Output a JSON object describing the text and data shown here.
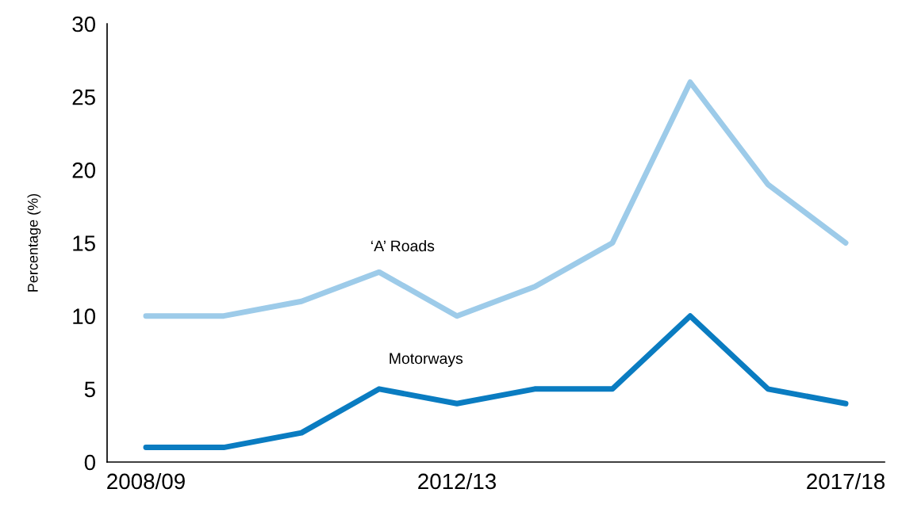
{
  "chart_data": {
    "type": "line",
    "ylabel": "Percentage (%)",
    "categories": [
      "2008/09",
      null,
      null,
      null,
      "2012/13",
      null,
      null,
      null,
      null,
      "2017/18"
    ],
    "series": [
      {
        "name": "‘A’ Roads",
        "color": "#9dcbe9",
        "values": [
          10,
          10,
          11,
          13,
          10,
          12,
          15,
          26,
          19,
          15
        ]
      },
      {
        "name": "Motorways",
        "color": "#0a7cc1",
        "values": [
          1,
          1,
          2,
          5,
          4,
          5,
          5,
          10,
          5,
          4
        ]
      }
    ],
    "ylim": [
      0,
      30
    ],
    "yticks": [
      0,
      5,
      10,
      15,
      20,
      25,
      30
    ],
    "grid": false,
    "legend": false,
    "marker": "none",
    "line_style": "solid"
  }
}
